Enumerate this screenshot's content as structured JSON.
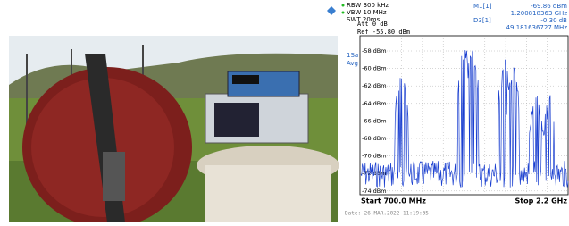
{
  "analyzer": {
    "settings": {
      "att": "Att  0 dB",
      "ref": "Ref  -55.80 dBm",
      "rbw": "RBW 300 kHz",
      "vbw": "VBW 10 MHz",
      "swt": "SWT 20ms"
    },
    "marker1": {
      "name": "M1[1]",
      "level": "-69.86 dBm",
      "freq": "1.200818363 GHz"
    },
    "delta3": {
      "name": "D3[1]",
      "level": "-0.30 dB",
      "freq": "49.181636727 MHz"
    },
    "trace_mode": [
      "1Sa",
      "Avg"
    ],
    "y_labels": [
      "-58 dBm",
      "-60 dBm",
      "-62 dBm",
      "-64 dBm",
      "-66 dBm",
      "-68 dBm",
      "-70 dBm",
      "-72 dBm",
      "-74 dBm"
    ],
    "start": "Start 700.0 MHz",
    "stop": "Stop 2.2 GHz",
    "date": "Date: 26.MAR.2022  11:19:35"
  }
}
